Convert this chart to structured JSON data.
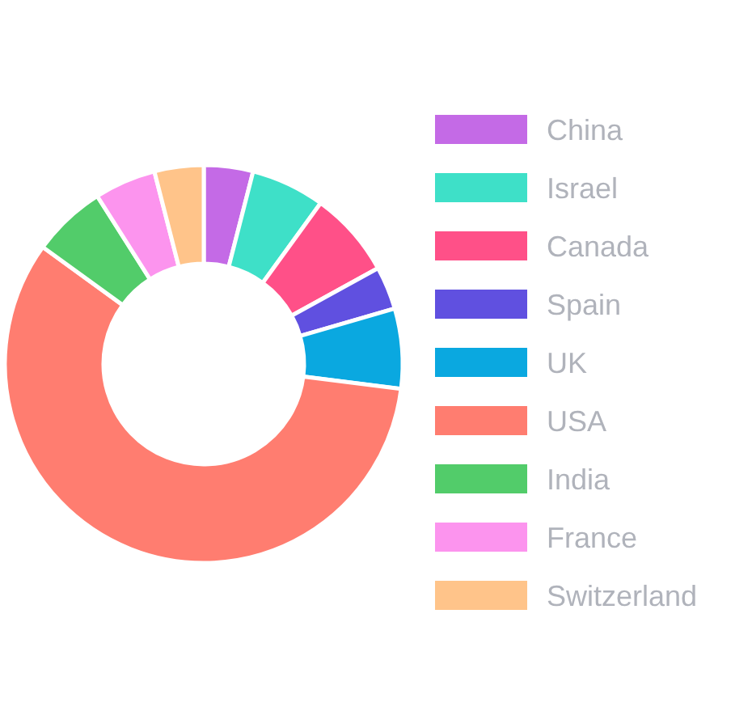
{
  "chart_data": {
    "type": "donut",
    "categories": [
      "China",
      "Israel",
      "Canada",
      "Spain",
      "UK",
      "USA",
      "India",
      "France",
      "Switzerland"
    ],
    "values": [
      4,
      6,
      7,
      3.5,
      6.5,
      58,
      6,
      5,
      4
    ],
    "colors": [
      "#c46ae6",
      "#3ee0c8",
      "#ff5088",
      "#6050e0",
      "#0aa8e0",
      "#ff7d70",
      "#52cc6a",
      "#fc94ee",
      "#ffc48a"
    ],
    "legend": "right"
  }
}
